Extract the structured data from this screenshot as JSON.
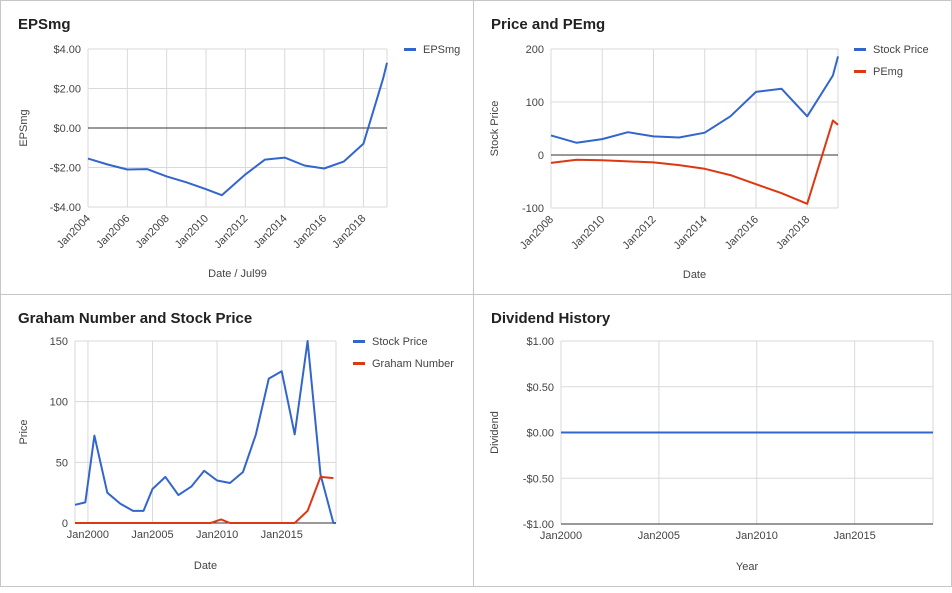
{
  "chart_data": [
    {
      "type": "line",
      "title": "EPSmg",
      "xlabel": "Date / Jul99",
      "ylabel": "EPSmg",
      "ylim": [
        -4,
        4
      ],
      "xlim": [
        2004,
        2019.2
      ],
      "ytick_labels": [
        "$4.00",
        "$2.00",
        "$0.00",
        "-$2.00",
        "-$4.00"
      ],
      "ytick_values": [
        4,
        2,
        0,
        -2,
        -4
      ],
      "xtick_labels": [
        "Jan2004",
        "Jan2006",
        "Jan2008",
        "Jan2010",
        "Jan2012",
        "Jan2014",
        "Jan2016",
        "Jan2018"
      ],
      "xtick_values": [
        2004,
        2006,
        2008,
        2010,
        2012,
        2014,
        2016,
        2018
      ],
      "grid": true,
      "legend": "right",
      "x_rotated_labels": true,
      "baseline_zero": true,
      "series": [
        {
          "name": "EPSmg",
          "color": "#3366cc",
          "x": [
            2004,
            2005,
            2006,
            2007,
            2008,
            2009,
            2010,
            2010.8,
            2012,
            2013,
            2014,
            2015,
            2016,
            2017,
            2018,
            2019,
            2019.2
          ],
          "y": [
            -1.55,
            -1.85,
            -2.1,
            -2.08,
            -2.45,
            -2.75,
            -3.1,
            -3.4,
            -2.35,
            -1.6,
            -1.5,
            -1.9,
            -2.05,
            -1.7,
            -0.8,
            2.5,
            3.3
          ]
        }
      ]
    },
    {
      "type": "line",
      "title": "Price and PEmg",
      "xlabel": "Date",
      "ylabel": "Stock Price",
      "ylim": [
        -100,
        200
      ],
      "xlim": [
        2008,
        2019.2
      ],
      "ytick_labels": [
        "200",
        "100",
        "0",
        "-100"
      ],
      "ytick_values": [
        200,
        100,
        0,
        -100
      ],
      "xtick_labels": [
        "Jan2008",
        "Jan2010",
        "Jan2012",
        "Jan2014",
        "Jan2016",
        "Jan2018"
      ],
      "xtick_values": [
        2008,
        2010,
        2012,
        2014,
        2016,
        2018
      ],
      "grid": true,
      "legend": "right",
      "x_rotated_labels": true,
      "baseline_zero": true,
      "series": [
        {
          "name": "Stock Price",
          "color": "#3366cc",
          "x": [
            2008,
            2009,
            2010,
            2011,
            2012,
            2013,
            2014,
            2015,
            2016,
            2017,
            2018,
            2019,
            2019.2
          ],
          "y": [
            37,
            23,
            30,
            43,
            35,
            33,
            42,
            73,
            119,
            125,
            73,
            150,
            186
          ]
        },
        {
          "name": "PEmg",
          "color": "#dc3912",
          "x": [
            2008,
            2009,
            2010,
            2011,
            2012,
            2013,
            2014,
            2015,
            2016,
            2017,
            2018,
            2019,
            2019.2
          ],
          "y": [
            -15,
            -9,
            -10,
            -12,
            -14,
            -19,
            -26,
            -38,
            -55,
            -72,
            -92,
            65,
            57
          ]
        }
      ]
    },
    {
      "type": "line",
      "title": "Graham Number and Stock Price",
      "xlabel": "Date",
      "ylabel": "Price",
      "ylim": [
        0,
        150
      ],
      "xlim": [
        1999,
        2019.2
      ],
      "ytick_labels": [
        "150",
        "100",
        "50",
        "0"
      ],
      "ytick_values": [
        150,
        100,
        50,
        0
      ],
      "xtick_labels": [
        "Jan2000",
        "Jan2005",
        "Jan2010",
        "Jan2015"
      ],
      "xtick_values": [
        2000,
        2005,
        2010,
        2015
      ],
      "grid": true,
      "legend": "right",
      "x_rotated_labels": false,
      "baseline_zero": false,
      "series": [
        {
          "name": "Stock Price",
          "color": "#3366cc",
          "x": [
            1999,
            1999.8,
            2000.5,
            2001.5,
            2002.5,
            2003.5,
            2004.3,
            2005,
            2006,
            2007,
            2008,
            2009,
            2010,
            2011,
            2012,
            2013,
            2014,
            2015,
            2016,
            2017,
            2018,
            2019,
            2019.2
          ],
          "y": [
            15,
            17,
            72,
            25,
            16,
            10,
            10,
            28,
            38,
            23,
            30,
            43,
            35,
            33,
            42,
            73,
            119,
            125,
            73,
            150,
            40,
            0,
            0
          ]
        },
        {
          "name": "Graham Number",
          "color": "#dc3912",
          "x": [
            1999,
            2009.5,
            2010.3,
            2011,
            2016,
            2017,
            2018,
            2019
          ],
          "y": [
            0,
            0,
            3,
            0,
            0,
            10,
            38,
            37
          ]
        }
      ]
    },
    {
      "type": "line",
      "title": "Dividend History",
      "xlabel": "Year",
      "ylabel": "Dividend",
      "ylim": [
        -1,
        1
      ],
      "xlim": [
        2000,
        2019
      ],
      "ytick_labels": [
        "$1.00",
        "$0.50",
        "$0.00",
        "-$0.50",
        "-$1.00"
      ],
      "ytick_values": [
        1,
        0.5,
        0,
        -0.5,
        -1
      ],
      "xtick_labels": [
        "Jan2000",
        "Jan2005",
        "Jan2010",
        "Jan2015"
      ],
      "xtick_values": [
        2000,
        2005,
        2010,
        2015
      ],
      "grid": true,
      "legend": "none",
      "x_rotated_labels": false,
      "baseline_zero": false,
      "series": [
        {
          "color": "#3366cc",
          "x": [
            2000,
            2019
          ],
          "y": [
            0,
            0
          ]
        }
      ]
    }
  ]
}
